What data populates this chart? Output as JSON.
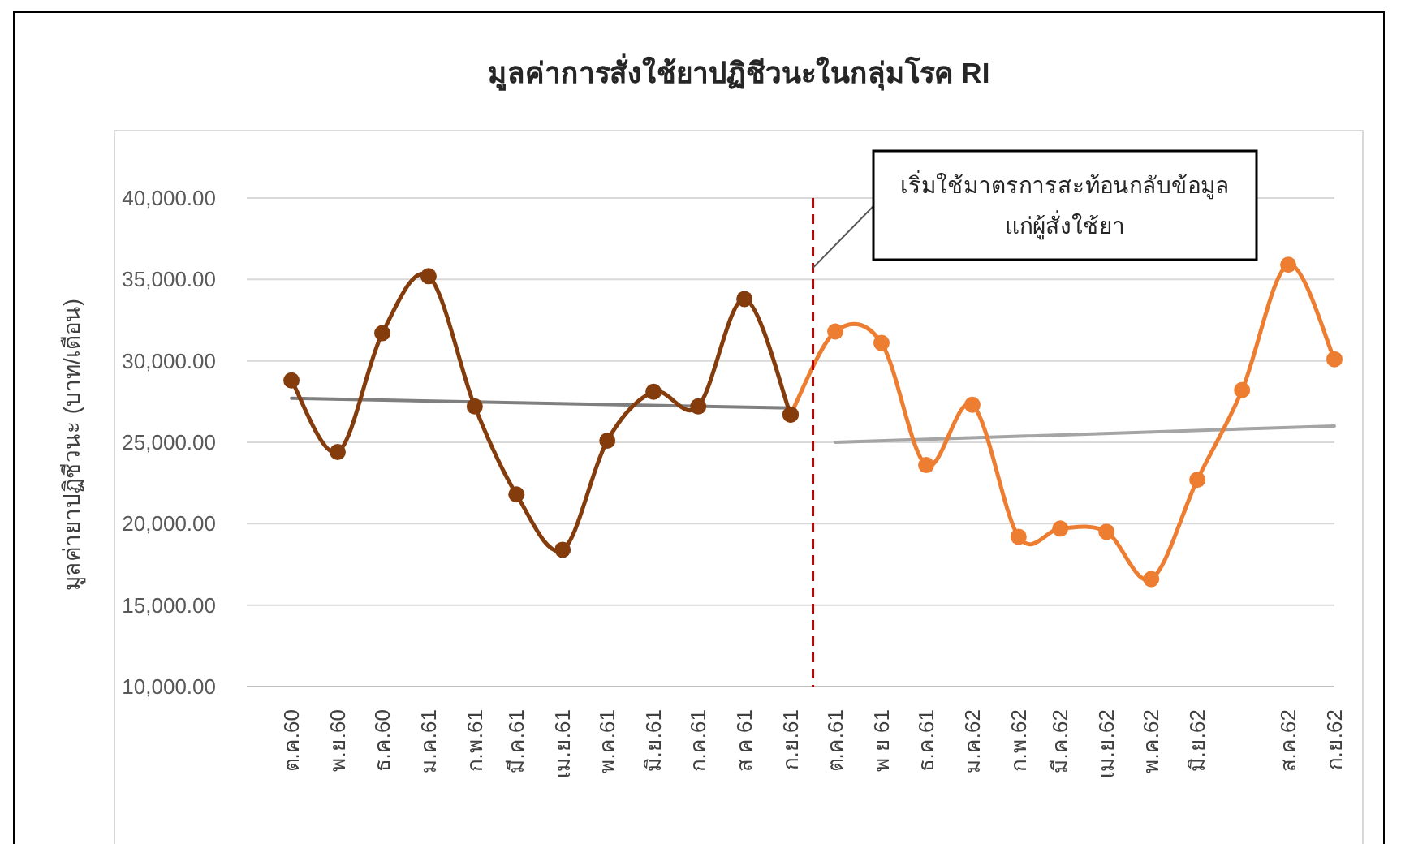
{
  "chart_data": {
    "type": "line",
    "title": "มูลค่าการสั่งใช้ยาปฏิชีวนะในกลุ่มโรค RI",
    "ylabel": "มูลค่ายาปฏิชีวนะ (บาท/เดือน)",
    "x": [
      "2560-10",
      "2560-11",
      "2560-12",
      "2561-01",
      "2561-02",
      "2561-03",
      "2561-04",
      "2561-05",
      "2561-06",
      "2561-07",
      "2561-08",
      "2561-09",
      "2561-10",
      "2561-11",
      "2561-12",
      "2562-01",
      "2562-02",
      "2562-03",
      "2562-04",
      "2562-05",
      "2562-06",
      "2562-07",
      "2562-08",
      "2562-09"
    ],
    "series": [
      {
        "type": "line",
        "color": "#7f7f7f",
        "x": [
          "2560-10",
          "2561-09"
        ],
        "values": [
          27700,
          27100
        ],
        "marker": "none"
      },
      {
        "type": "line",
        "color": "#a5a5a5",
        "x": [
          "2561-10",
          "2562-09"
        ],
        "values": [
          25000,
          26000
        ],
        "marker": "none"
      },
      {
        "color": "#ed7d31",
        "values": [
          null,
          null,
          null,
          null,
          null,
          null,
          null,
          null,
          null,
          null,
          null,
          26700,
          31800,
          31100,
          23600,
          27300,
          19200,
          19700,
          19500,
          16600,
          22700,
          28200,
          35900,
          30100
        ]
      },
      {
        "color": "#843c0c",
        "values": [
          28800,
          24400,
          31700,
          35200,
          27200,
          21800,
          18400,
          25100,
          28100,
          27200,
          33800,
          26700,
          null,
          null,
          null,
          null,
          null,
          null,
          null,
          null,
          null,
          null,
          null,
          null
        ]
      }
    ],
    "xlim": [
      "2560-09",
      "2562-09"
    ],
    "xticks": [
      {
        "value": "2560-10",
        "label": "ต.ค.60"
      },
      {
        "value": "2560-11",
        "label": "พ.ย.60"
      },
      {
        "value": "2560-12",
        "label": "ธ.ค.60"
      },
      {
        "value": "2561-01",
        "label": "ม.ค.61"
      },
      {
        "value": "2561-02",
        "label": "ก.พ.61"
      },
      {
        "value": "2561-03",
        "label": "มี.ค.61"
      },
      {
        "value": "2561-04",
        "label": "เม.ย.61"
      },
      {
        "value": "2561-05",
        "label": "พ.ค.61"
      },
      {
        "value": "2561-06",
        "label": "มิ.ย.61"
      },
      {
        "value": "2561-07",
        "label": "ก.ค.61"
      },
      {
        "value": "2561-08",
        "label": "ส ค 61"
      },
      {
        "value": "2561-09",
        "label": "ก.ย.61"
      },
      {
        "value": "2561-10",
        "label": "ต.ค.61"
      },
      {
        "value": "2561-11",
        "label": "พ ย 61"
      },
      {
        "value": "2561-12",
        "label": "ธ.ค.61"
      },
      {
        "value": "2562-01",
        "label": "ม.ค.62"
      },
      {
        "value": "2562-02",
        "label": "ก.พ.62"
      },
      {
        "value": "2562-03",
        "label": "มี.ค.62"
      },
      {
        "value": "2562-04",
        "label": "เม.ย.62"
      },
      {
        "value": "2562-05",
        "label": "พ.ค.62"
      },
      {
        "value": "2562-06",
        "label": "มิ.ย.62"
      },
      {
        "value": "2562-08",
        "label": "ส.ค.62"
      },
      {
        "value": "2562-09",
        "label": "ก.ย.62"
      }
    ],
    "ylim": [
      10000,
      40000
    ],
    "yticks": [
      {
        "value": 10000,
        "label": "10,000.00"
      },
      {
        "value": 15000,
        "label": "15,000.00"
      },
      {
        "value": 20000,
        "label": "20,000.00"
      },
      {
        "value": 25000,
        "label": "25,000.00"
      },
      {
        "value": 30000,
        "label": "30,000.00"
      },
      {
        "value": 35000,
        "label": "35,000.00"
      },
      {
        "value": 40000,
        "label": "40,000.00"
      }
    ],
    "grid": "y",
    "marker": "circle",
    "line_style": "solid",
    "ref_lines": [
      {
        "axis": "x",
        "value": "2561-09-16",
        "label": "เริ่มใช้มาตรการสะท้อนกลับข้อมูล\nแก่ผู้สั่งใช้ยา",
        "color": "#c00000",
        "line_style": "dashed"
      }
    ]
  }
}
